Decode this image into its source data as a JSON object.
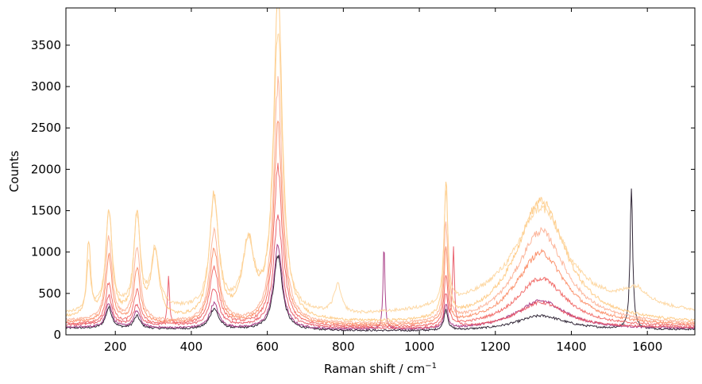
{
  "chart_data": {
    "type": "line",
    "title": "",
    "xlabel": "Raman shift / cm",
    "xlabel_superscript": "−1",
    "ylabel": "Counts",
    "xlim": [
      70,
      1725
    ],
    "ylim": [
      0,
      3950
    ],
    "x_ticks": [
      200,
      400,
      600,
      800,
      1000,
      1200,
      1400,
      1600
    ],
    "y_ticks": [
      0,
      500,
      1000,
      1500,
      2000,
      2500,
      3000,
      3500
    ],
    "grid": false,
    "legend": "none",
    "colormap": "magma (dark to pale yellow)",
    "series": [
      {
        "color": "#1b1021",
        "baseline": [
          [
            70,
            80
          ],
          [
            500,
            60
          ],
          [
            1000,
            40
          ],
          [
            1725,
            60
          ]
        ],
        "peaks": [
          [
            183,
            10,
            250
          ],
          [
            257,
            10,
            150
          ],
          [
            460,
            14,
            250
          ],
          [
            628,
            14,
            900
          ],
          [
            1070,
            6,
            250
          ],
          [
            1320,
            80,
            180
          ],
          [
            1558,
            4,
            1750
          ]
        ]
      },
      {
        "color": "#a3307e",
        "baseline": [
          [
            70,
            90
          ],
          [
            500,
            70
          ],
          [
            1000,
            50
          ],
          [
            1725,
            70
          ]
        ],
        "peaks": [
          [
            183,
            10,
            300
          ],
          [
            257,
            10,
            200
          ],
          [
            460,
            14,
            300
          ],
          [
            628,
            14,
            1000
          ],
          [
            907,
            3,
            1000
          ],
          [
            1070,
            6,
            300
          ],
          [
            1320,
            80,
            350
          ]
        ]
      },
      {
        "color": "#e85362",
        "baseline": [
          [
            70,
            120
          ],
          [
            500,
            100
          ],
          [
            1000,
            60
          ],
          [
            1725,
            80
          ]
        ],
        "peaks": [
          [
            183,
            10,
            350
          ],
          [
            257,
            10,
            250
          ],
          [
            340,
            3,
            600
          ],
          [
            460,
            14,
            450
          ],
          [
            628,
            14,
            1350
          ],
          [
            1070,
            6,
            400
          ],
          [
            1090,
            3,
            950
          ],
          [
            1320,
            80,
            320
          ]
        ]
      },
      {
        "color": "#f0605d",
        "baseline": [
          [
            70,
            130
          ],
          [
            500,
            110
          ],
          [
            1000,
            70
          ],
          [
            1725,
            90
          ]
        ],
        "peaks": [
          [
            183,
            10,
            500
          ],
          [
            257,
            10,
            400
          ],
          [
            460,
            14,
            700
          ],
          [
            628,
            14,
            1900
          ],
          [
            1070,
            6,
            600
          ],
          [
            1320,
            80,
            600
          ]
        ]
      },
      {
        "color": "#fb8861",
        "baseline": [
          [
            70,
            150
          ],
          [
            500,
            120
          ],
          [
            1000,
            80
          ],
          [
            1725,
            100
          ]
        ],
        "peaks": [
          [
            183,
            10,
            800
          ],
          [
            257,
            10,
            650
          ],
          [
            460,
            14,
            900
          ],
          [
            628,
            14,
            2400
          ],
          [
            1070,
            6,
            900
          ],
          [
            1320,
            80,
            900
          ]
        ]
      },
      {
        "color": "#fcae91",
        "baseline": [
          [
            70,
            170
          ],
          [
            500,
            130
          ],
          [
            1000,
            90
          ],
          [
            1725,
            110
          ]
        ],
        "peaks": [
          [
            183,
            10,
            1000
          ],
          [
            257,
            10,
            900
          ],
          [
            460,
            14,
            1100
          ],
          [
            628,
            14,
            2900
          ],
          [
            1070,
            6,
            1200
          ],
          [
            1320,
            80,
            1150
          ]
        ]
      },
      {
        "color": "#fec87e",
        "baseline": [
          [
            70,
            200
          ],
          [
            500,
            150
          ],
          [
            1000,
            100
          ],
          [
            1725,
            120
          ]
        ],
        "peaks": [
          [
            130,
            6,
            900
          ],
          [
            183,
            10,
            1300
          ],
          [
            257,
            10,
            1250
          ],
          [
            305,
            12,
            800
          ],
          [
            460,
            14,
            1500
          ],
          [
            550,
            18,
            900
          ],
          [
            628,
            14,
            3900
          ],
          [
            1070,
            6,
            1650
          ],
          [
            1320,
            80,
            1500
          ]
        ]
      },
      {
        "color": "#fdd49a",
        "baseline": [
          [
            70,
            250
          ],
          [
            300,
            300
          ],
          [
            800,
            200
          ],
          [
            1000,
            250
          ],
          [
            1200,
            350
          ],
          [
            1725,
            250
          ]
        ],
        "peaks": [
          [
            130,
            6,
            600
          ],
          [
            183,
            10,
            1200
          ],
          [
            257,
            10,
            1100
          ],
          [
            305,
            12,
            700
          ],
          [
            460,
            14,
            1350
          ],
          [
            550,
            18,
            800
          ],
          [
            628,
            14,
            3400
          ],
          [
            785,
            12,
            350
          ],
          [
            1070,
            6,
            1400
          ],
          [
            1320,
            80,
            1200
          ],
          [
            1570,
            40,
            200
          ]
        ]
      }
    ]
  }
}
